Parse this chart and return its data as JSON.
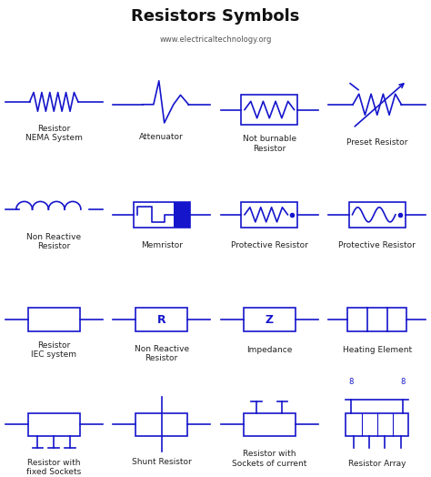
{
  "title": "Resistors Symbols",
  "subtitle": "www.electricaltechnology.org",
  "title_color": "#111111",
  "subtitle_color": "#555555",
  "bg_color": "#ffffff",
  "cell_bg_light": "#dcdcdc",
  "cell_bg_white": "#f0f0f0",
  "symbol_color": "#1515cc",
  "labels": [
    [
      "Resistor\nNEMA System",
      "Attenuator",
      "Not burnable\nResistor",
      "Preset Resistor"
    ],
    [
      "Non Reactive\nResistor",
      "Memristor",
      "Protective Resistor",
      "Protective Resistor"
    ],
    [
      "Resistor\nIEC system",
      "Non Reactive\nResistor",
      "Impedance",
      "Heating Element"
    ],
    [
      "Resistor with\nfixed Sockets",
      "Shunt Resistor",
      "Resistor with\nSockets of current",
      "Resistor Array"
    ]
  ]
}
